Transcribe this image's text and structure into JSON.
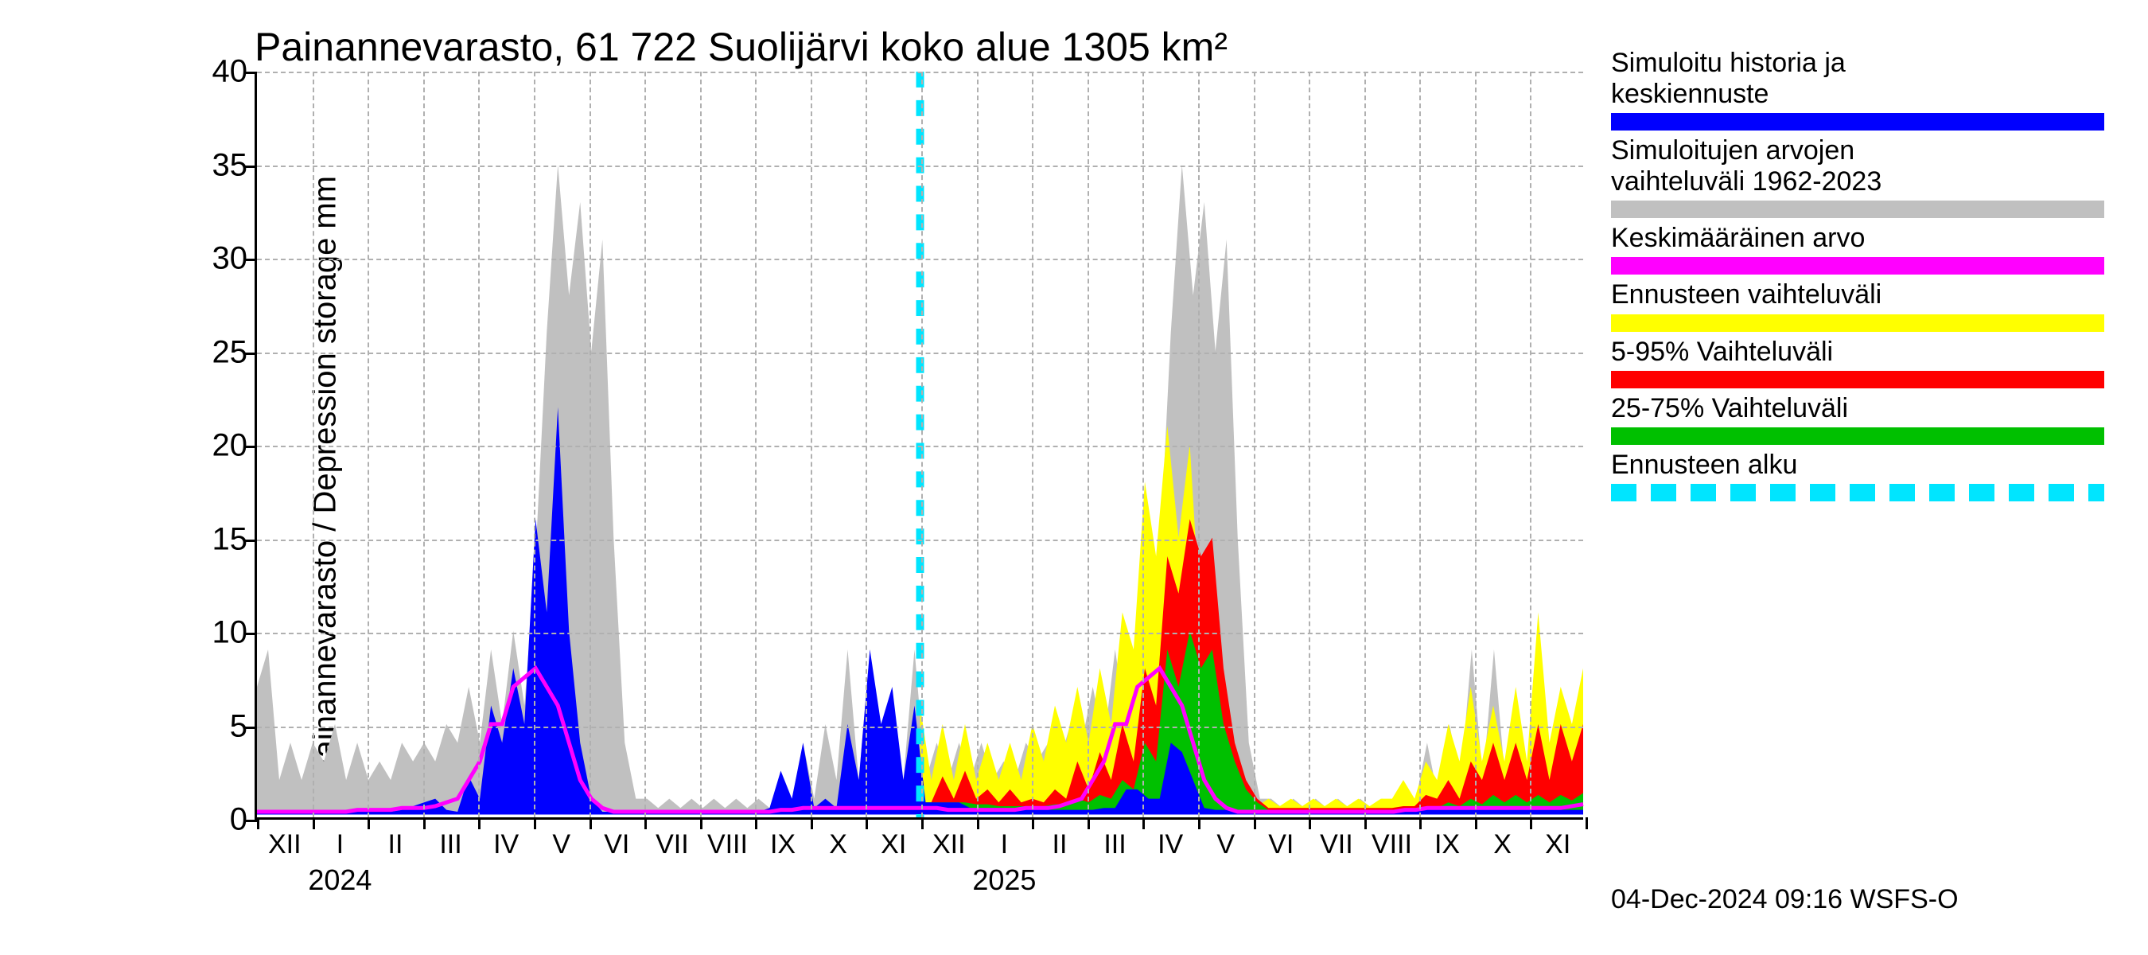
{
  "title": "Painannevarasto, 61 722 Suolijärvi koko alue 1305 km²",
  "y_label": "Painannevarasto / Depression storage    mm",
  "timestamp": "04-Dec-2024 09:16 WSFS-O",
  "axes": {
    "ylim": [
      0,
      40
    ],
    "ytick_step": 5,
    "yticks": [
      0,
      5,
      10,
      15,
      20,
      25,
      30,
      35,
      40
    ],
    "x_months": [
      "XII",
      "I",
      "II",
      "III",
      "IV",
      "V",
      "VI",
      "VII",
      "VIII",
      "IX",
      "X",
      "XI",
      "XII",
      "I",
      "II",
      "III",
      "IV",
      "V",
      "VI",
      "VII",
      "VIII",
      "IX",
      "X",
      "XI"
    ],
    "x_years": [
      {
        "label": "2024",
        "index": 1
      },
      {
        "label": "2025",
        "index": 13
      }
    ],
    "grid_color": "#b0b0b0",
    "background_color": "#ffffff",
    "axis_color": "#000000",
    "tick_fontsize": 40,
    "label_fontsize": 40,
    "title_fontsize": 50
  },
  "forecast_start_index": 12.0,
  "colors": {
    "history_blue": "#0000ff",
    "range_gray": "#c0c0c0",
    "mean_magenta": "#ff00ff",
    "forecast_yellow": "#ffff00",
    "band_red": "#ff0000",
    "band_green": "#00c000",
    "forecast_cyan": "#00e5ff"
  },
  "legend": [
    {
      "lines": [
        "Simuloitu historia ja",
        "keskiennuste"
      ],
      "color": "#0000ff",
      "type": "solid"
    },
    {
      "lines": [
        "Simuloitujen arvojen",
        "vaihteluväli 1962-2023"
      ],
      "color": "#c0c0c0",
      "type": "solid"
    },
    {
      "lines": [
        "Keskimääräinen arvo"
      ],
      "color": "#ff00ff",
      "type": "solid"
    },
    {
      "lines": [
        "Ennusteen vaihteluväli"
      ],
      "color": "#ffff00",
      "type": "solid"
    },
    {
      "lines": [
        "5-95% Vaihteluväli"
      ],
      "color": "#ff0000",
      "type": "solid"
    },
    {
      "lines": [
        "25-75% Vaihteluväli"
      ],
      "color": "#00c000",
      "type": "solid"
    },
    {
      "lines": [
        "Ennusteen alku"
      ],
      "color": "#00e5ff",
      "type": "dash"
    }
  ],
  "series": {
    "gray_range": {
      "upper": [
        7,
        9,
        2,
        4,
        2,
        4,
        3,
        5,
        2,
        4,
        2,
        3,
        2,
        4,
        3,
        4,
        3,
        5,
        4,
        7,
        4,
        9,
        5,
        10,
        6,
        14,
        26,
        35,
        28,
        33,
        25,
        31,
        15,
        4,
        1,
        1,
        0.5,
        1,
        0.5,
        1,
        0.5,
        1,
        0.5,
        1,
        0.5,
        1,
        0.5,
        1,
        1,
        4,
        1,
        5,
        2,
        9,
        2,
        9,
        2,
        6,
        2,
        9,
        2,
        4,
        2,
        4,
        2,
        4,
        2,
        3,
        2,
        4,
        3,
        4,
        3,
        5,
        4,
        7,
        4,
        9,
        5,
        10,
        6,
        14,
        26,
        35,
        28,
        33,
        25,
        31,
        15,
        4,
        1,
        1,
        0.5,
        1,
        0.5,
        1,
        0.5,
        1,
        0.5,
        1,
        0.5,
        1,
        0.5,
        1,
        1,
        4,
        1,
        5,
        2,
        9,
        2,
        9,
        2,
        6,
        2,
        9,
        3,
        5,
        3,
        7
      ],
      "lower_const": 0.2
    },
    "blue_history": [
      0.3,
      0.3,
      0.3,
      0.3,
      0.3,
      0.3,
      0.3,
      0.3,
      0.3,
      0.3,
      0.3,
      0.3,
      0.3,
      0.4,
      0.6,
      0.8,
      1,
      0.4,
      0.3,
      2.2,
      1,
      6,
      4,
      8,
      5,
      16,
      11,
      22,
      10,
      4,
      1,
      0.3,
      0.3,
      0.3,
      0.3,
      0.3,
      0.3,
      0.3,
      0.3,
      0.3,
      0.3,
      0.3,
      0.3,
      0.3,
      0.3,
      0.3,
      0.5,
      2.5,
      1,
      4,
      0.5,
      1,
      0.5,
      5,
      2,
      9,
      5,
      7,
      2,
      6,
      0.8,
      0.8,
      0.8,
      0.8,
      0.5,
      0.5,
      0.5,
      0.5,
      0.4,
      0.4,
      0.4,
      0.4,
      0.4,
      0.4,
      0.4,
      0.4,
      0.5,
      0.5,
      1.5,
      1.5,
      1,
      1,
      4,
      3.5,
      2,
      0.5,
      0.4,
      0.4,
      0.4,
      0.4,
      0.4,
      0.4,
      0.4,
      0.4,
      0.4,
      0.4,
      0.4,
      0.4,
      0.4,
      0.4,
      0.4,
      0.4,
      0.4,
      0.4,
      0.4,
      0.4,
      0.4,
      0.4,
      0.4,
      0.4,
      0.4,
      0.4,
      0.4,
      0.4,
      0.4,
      0.4,
      0.4,
      0.4,
      0.4,
      0.4
    ],
    "magenta_mean": [
      0.3,
      0.3,
      0.3,
      0.3,
      0.3,
      0.3,
      0.3,
      0.3,
      0.3,
      0.4,
      0.4,
      0.4,
      0.4,
      0.5,
      0.5,
      0.5,
      0.6,
      0.8,
      1,
      2,
      3,
      5,
      5,
      7,
      7.5,
      8,
      7,
      6,
      4,
      2,
      1,
      0.5,
      0.3,
      0.3,
      0.3,
      0.3,
      0.3,
      0.3,
      0.3,
      0.3,
      0.3,
      0.3,
      0.3,
      0.3,
      0.3,
      0.3,
      0.3,
      0.4,
      0.4,
      0.5,
      0.5,
      0.5,
      0.5,
      0.5,
      0.5,
      0.5,
      0.5,
      0.5,
      0.5,
      0.5,
      0.5,
      0.5,
      0.4,
      0.4,
      0.4,
      0.4,
      0.4,
      0.4,
      0.4,
      0.5,
      0.5,
      0.5,
      0.6,
      0.8,
      1,
      2,
      3,
      5,
      5,
      7,
      7.5,
      8,
      7,
      6,
      4,
      2,
      1,
      0.5,
      0.3,
      0.3,
      0.3,
      0.3,
      0.3,
      0.3,
      0.3,
      0.3,
      0.3,
      0.3,
      0.3,
      0.3,
      0.3,
      0.3,
      0.3,
      0.4,
      0.4,
      0.5,
      0.5,
      0.5,
      0.5,
      0.5,
      0.5,
      0.5,
      0.5,
      0.5,
      0.5,
      0.5,
      0.5,
      0.5,
      0.6,
      0.7
    ],
    "yellow_band": {
      "start_index": 60,
      "upper": [
        6,
        2,
        5,
        2,
        5,
        2,
        4,
        2,
        4,
        2,
        5,
        3,
        6,
        4,
        7,
        4,
        8,
        5,
        11,
        9,
        18,
        14,
        21,
        15,
        20,
        10,
        7,
        4,
        2,
        1,
        0.6,
        1,
        0.6,
        1,
        0.6,
        1,
        0.6,
        1,
        0.6,
        1,
        0.6,
        1,
        1,
        2,
        1,
        3,
        2,
        5,
        3,
        7,
        3,
        6,
        3,
        7,
        3,
        11,
        4,
        7,
        5,
        8
      ],
      "lower_const": 0.2
    },
    "red_band": {
      "start_index": 60,
      "upper": [
        0.8,
        0.8,
        2.2,
        1,
        2.5,
        1,
        1.5,
        0.8,
        1.5,
        0.8,
        1,
        0.8,
        1.5,
        1,
        3,
        1.5,
        3.5,
        2,
        5,
        3,
        8,
        6,
        14,
        12,
        16,
        14,
        15,
        8,
        4,
        2,
        1,
        0.5,
        0.5,
        0.5,
        0.5,
        0.5,
        0.5,
        0.5,
        0.5,
        0.5,
        0.5,
        0.5,
        0.5,
        0.6,
        0.6,
        1.2,
        1,
        2,
        1,
        3,
        2,
        4,
        2,
        4,
        2,
        5,
        2,
        5,
        3,
        5
      ],
      "lower_const": 0.25
    },
    "green_band": {
      "start_index": 60,
      "upper": [
        0.8,
        0.8,
        0.8,
        0.8,
        0.8,
        0.7,
        0.7,
        0.6,
        0.6,
        0.6,
        0.6,
        0.6,
        0.7,
        0.7,
        1,
        0.8,
        1.2,
        1,
        2,
        1.5,
        4,
        3,
        9,
        7,
        10,
        8,
        9,
        5,
        3,
        1.5,
        0.8,
        0.4,
        0.4,
        0.4,
        0.4,
        0.4,
        0.4,
        0.4,
        0.4,
        0.4,
        0.4,
        0.4,
        0.4,
        0.4,
        0.4,
        0.6,
        0.5,
        0.8,
        0.6,
        1,
        0.7,
        1.2,
        0.8,
        1.2,
        0.8,
        1.2,
        0.8,
        1.2,
        0.9,
        1.3
      ],
      "lower_const": 0.3
    }
  }
}
